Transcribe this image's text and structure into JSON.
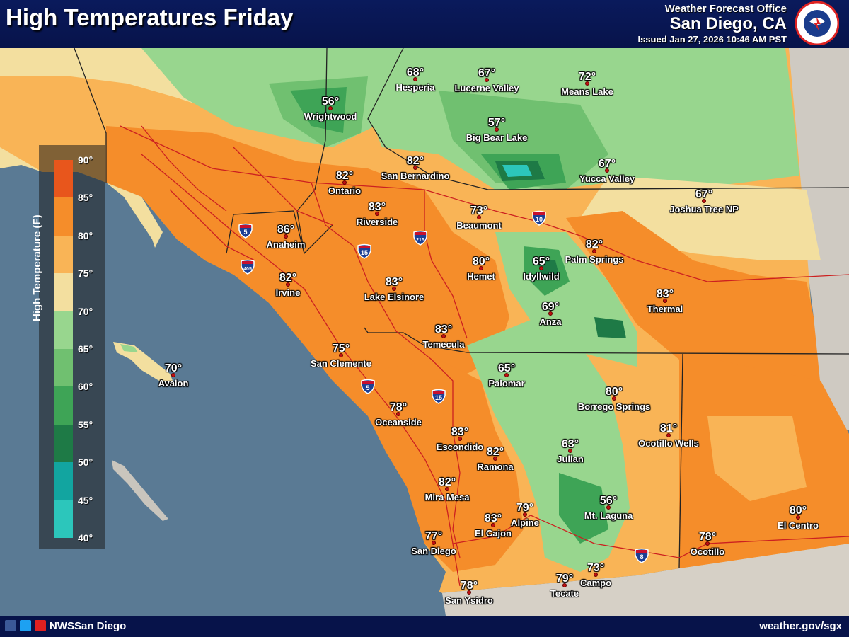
{
  "header": {
    "title": "High Temperatures Friday",
    "office_line1": "Weather Forecast Office",
    "office_line2": "San Diego, CA",
    "issued": "Issued Jan 27, 2026 10:46 AM PST",
    "seal_icon": "nws-seal-icon"
  },
  "legend": {
    "title": "High Temperature (F)",
    "ticks": [
      "90°",
      "85°",
      "80°",
      "75°",
      "70°",
      "65°",
      "60°",
      "55°",
      "50°",
      "45°",
      "40°"
    ],
    "colors": [
      "#e8561c",
      "#f58d2a",
      "#f9b456",
      "#f3df9f",
      "#98d68e",
      "#70c070",
      "#3ea456",
      "#1e7a46",
      "#12a5a0",
      "#2cc6bb"
    ]
  },
  "cities": [
    {
      "temp": "56°",
      "name": "Wrightwood"
    },
    {
      "temp": "68°",
      "name": "Hesperia"
    },
    {
      "temp": "67°",
      "name": "Lucerne Valley"
    },
    {
      "temp": "72°",
      "name": "Means Lake"
    },
    {
      "temp": "57°",
      "name": "Big Bear Lake"
    },
    {
      "temp": "82°",
      "name": "San Bernardino"
    },
    {
      "temp": "82°",
      "name": "Ontario"
    },
    {
      "temp": "67°",
      "name": "Yucca Valley"
    },
    {
      "temp": "67°",
      "name": "Joshua Tree NP"
    },
    {
      "temp": "83°",
      "name": "Riverside"
    },
    {
      "temp": "73°",
      "name": "Beaumont"
    },
    {
      "temp": "86°",
      "name": "Anaheim"
    },
    {
      "temp": "82°",
      "name": "Palm Springs"
    },
    {
      "temp": "80°",
      "name": "Hemet"
    },
    {
      "temp": "65°",
      "name": "Idyllwild"
    },
    {
      "temp": "82°",
      "name": "Irvine"
    },
    {
      "temp": "83°",
      "name": "Lake Elsinore"
    },
    {
      "temp": "83°",
      "name": "Thermal"
    },
    {
      "temp": "69°",
      "name": "Anza"
    },
    {
      "temp": "83°",
      "name": "Temecula"
    },
    {
      "temp": "75°",
      "name": "San Clemente"
    },
    {
      "temp": "70°",
      "name": "Avalon"
    },
    {
      "temp": "65°",
      "name": "Palomar"
    },
    {
      "temp": "80°",
      "name": "Borrego Springs"
    },
    {
      "temp": "78°",
      "name": "Oceanside"
    },
    {
      "temp": "81°",
      "name": "Ocotillo Wells"
    },
    {
      "temp": "83°",
      "name": "Escondido"
    },
    {
      "temp": "82°",
      "name": "Ramona"
    },
    {
      "temp": "63°",
      "name": "Julian"
    },
    {
      "temp": "82°",
      "name": "Mira Mesa"
    },
    {
      "temp": "56°",
      "name": "Mt. Laguna"
    },
    {
      "temp": "80°",
      "name": "El Centro"
    },
    {
      "temp": "83°",
      "name": "El Cajon"
    },
    {
      "temp": "79°",
      "name": "Alpine"
    },
    {
      "temp": "77°",
      "name": "San Diego"
    },
    {
      "temp": "78°",
      "name": "Ocotillo"
    },
    {
      "temp": "73°",
      "name": "Campo"
    },
    {
      "temp": "79°",
      "name": "Tecate"
    },
    {
      "temp": "78°",
      "name": "San Ysidro"
    }
  ],
  "highways": [
    "5",
    "405",
    "15",
    "215",
    "10",
    "5",
    "15",
    "8"
  ],
  "footer": {
    "handle": "NWSSan Diego",
    "website": "weather.gov/sgx",
    "icons": [
      "facebook-icon",
      "twitter-icon",
      "youtube-icon"
    ]
  }
}
